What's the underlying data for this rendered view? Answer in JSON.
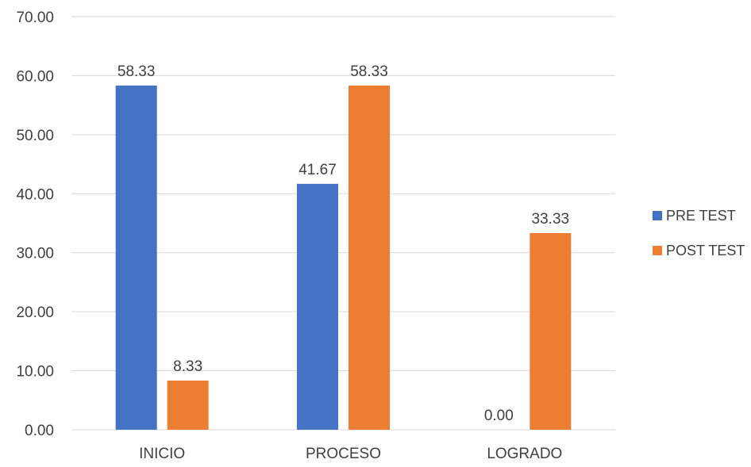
{
  "chart_data": {
    "type": "bar",
    "categories": [
      "INICIO",
      "PROCESO",
      "LOGRADO"
    ],
    "series": [
      {
        "name": "PRE TEST",
        "values": [
          58.33,
          41.67,
          0.0
        ],
        "color": "#4472C4"
      },
      {
        "name": "POST TEST",
        "values": [
          8.33,
          58.33,
          33.33
        ],
        "color": "#ED7D31"
      }
    ],
    "title": "",
    "xlabel": "",
    "ylabel": "",
    "ylim": [
      0,
      70
    ],
    "yticks": [
      0,
      10,
      20,
      30,
      40,
      50,
      60,
      70
    ],
    "tick_decimals": 2,
    "grid": true,
    "gridline_color": "#D9D9D9",
    "legend_position": "right"
  }
}
